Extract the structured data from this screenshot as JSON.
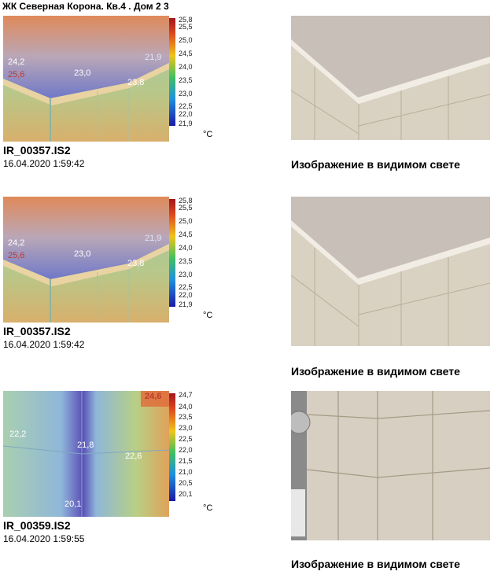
{
  "header": {
    "title": "ЖК Северная Корона. Кв.4 . Дом 2 3"
  },
  "blocks": [
    {
      "file": "IR_00357.IS2",
      "date": "16.04.2020 1:59:42",
      "caption": "Изображение в видимом свете",
      "scale_ticks": [
        "25,8",
        "25,5",
        "25,0",
        "24,5",
        "24,0",
        "23,5",
        "23,0",
        "22,5",
        "22,0",
        "21,9"
      ],
      "unit": "°C",
      "labels": [
        "24,2",
        "25,6",
        "23,0",
        "21,9",
        "23,8"
      ]
    },
    {
      "file": "IR_00357.IS2",
      "date": "16.04.2020 1:59:42",
      "caption": "Изображение в видимом свете",
      "scale_ticks": [
        "25,8",
        "25,5",
        "25,0",
        "24,5",
        "24,0",
        "23,5",
        "23,0",
        "22,5",
        "22,0",
        "21,9"
      ],
      "unit": "°C",
      "labels": [
        "24,2",
        "25,6",
        "23,0",
        "21,9",
        "23,8"
      ]
    },
    {
      "file": "IR_00359.IS2",
      "date": "16.04.2020 1:59:55",
      "caption": "Изображение в видимом свете",
      "scale_ticks": [
        "24,7",
        "24,0",
        "23,5",
        "23,0",
        "22,5",
        "22,0",
        "21,5",
        "21,0",
        "20,5",
        "20,1"
      ],
      "unit": "°C",
      "labels": [
        "24,6",
        "22,2",
        "21,8",
        "22,6",
        "20,1"
      ]
    }
  ],
  "colors": {
    "scale_top": "#c0392b",
    "scale_mid": "#2ecc71",
    "scale_bottom": "#1a1aa6"
  }
}
